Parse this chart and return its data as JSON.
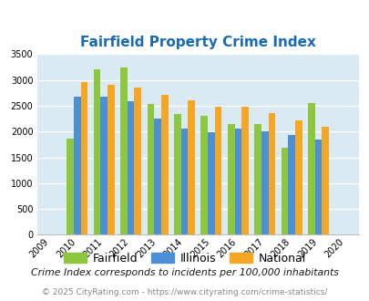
{
  "title": "Fairfield Property Crime Index",
  "data_years": [
    2010,
    2011,
    2012,
    2013,
    2014,
    2015,
    2016,
    2017,
    2018,
    2019
  ],
  "fairfield": [
    1870,
    3200,
    3250,
    2530,
    2340,
    2310,
    2150,
    2150,
    1680,
    2560
  ],
  "illinois": [
    2670,
    2670,
    2580,
    2260,
    2060,
    1990,
    2050,
    2010,
    1940,
    1840
  ],
  "national": [
    2960,
    2910,
    2860,
    2720,
    2600,
    2490,
    2480,
    2360,
    2210,
    2100
  ],
  "fairfield_color": "#8dc63f",
  "illinois_color": "#4a90d9",
  "national_color": "#f5a623",
  "bg_color": "#daeaf3",
  "ylim": [
    0,
    3500
  ],
  "yticks": [
    0,
    500,
    1000,
    1500,
    2000,
    2500,
    3000,
    3500
  ],
  "title_color": "#1a6bb5",
  "subtitle": "Crime Index corresponds to incidents per 100,000 inhabitants",
  "footer": "© 2025 CityRating.com - https://www.cityrating.com/crime-statistics/",
  "subtitle_color": "#1a1a1a",
  "footer_color": "#888888",
  "legend_labels": [
    "Fairfield",
    "Illinois",
    "National"
  ],
  "bar_width": 0.26
}
